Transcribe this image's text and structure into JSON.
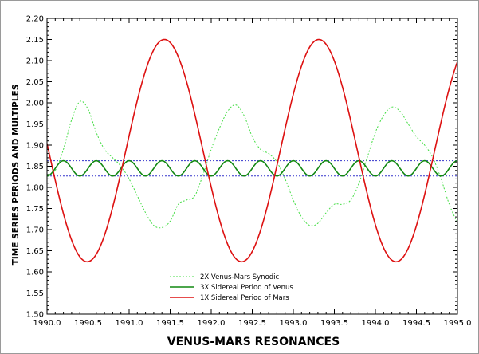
{
  "chart_data": {
    "type": "line",
    "title": "",
    "xlabel": "VENUS-MARS RESONANCES",
    "ylabel": "TIME SERIES PERIODS AND MULTIPLES",
    "xlim": [
      1990.0,
      1995.0
    ],
    "ylim": [
      1.5,
      2.2
    ],
    "x_ticks": [
      "1990.0",
      "1990.5",
      "1991.0",
      "1991.5",
      "1992.0",
      "1992.5",
      "1993.0",
      "1993.5",
      "1994.0",
      "1994.5",
      "1995.0"
    ],
    "y_ticks": [
      "1.50",
      "1.55",
      "1.60",
      "1.65",
      "1.70",
      "1.75",
      "1.80",
      "1.85",
      "1.90",
      "1.95",
      "2.00",
      "2.05",
      "2.10",
      "2.15",
      "2.20"
    ],
    "grid": false,
    "legend_position": "bottom-left",
    "reference_lines": [
      {
        "y": 1.863,
        "color": "#3333cc",
        "style": "dotted"
      },
      {
        "y": 1.827,
        "color": "#3333cc",
        "style": "dotted"
      }
    ],
    "series": [
      {
        "name": "2X Venus-Mars Synodic",
        "color": "#44dd44",
        "style": "dotted",
        "x": [
          1990.0,
          1990.1,
          1990.2,
          1990.3,
          1990.4,
          1990.5,
          1990.6,
          1990.7,
          1990.8,
          1990.9,
          1991.0,
          1991.1,
          1991.2,
          1991.3,
          1991.4,
          1991.5,
          1991.6,
          1991.7,
          1991.8,
          1991.9,
          1992.0,
          1992.1,
          1992.2,
          1992.3,
          1992.4,
          1992.5,
          1992.6,
          1992.7,
          1992.8,
          1992.9,
          1993.0,
          1993.1,
          1993.2,
          1993.3,
          1993.4,
          1993.5,
          1993.6,
          1993.7,
          1993.8,
          1993.9,
          1994.0,
          1994.1,
          1994.2,
          1994.3,
          1994.4,
          1994.5,
          1994.6,
          1994.7,
          1994.8,
          1994.9,
          1995.0
        ],
        "values": [
          1.83,
          1.84,
          1.89,
          1.96,
          2.003,
          1.985,
          1.93,
          1.89,
          1.87,
          1.85,
          1.82,
          1.78,
          1.74,
          1.71,
          1.705,
          1.72,
          1.76,
          1.77,
          1.78,
          1.83,
          1.89,
          1.94,
          1.98,
          1.995,
          1.97,
          1.92,
          1.89,
          1.88,
          1.86,
          1.82,
          1.77,
          1.73,
          1.71,
          1.715,
          1.74,
          1.76,
          1.76,
          1.77,
          1.81,
          1.87,
          1.93,
          1.97,
          1.99,
          1.98,
          1.95,
          1.92,
          1.9,
          1.87,
          1.82,
          1.76,
          1.715
        ]
      },
      {
        "name": "3X Sidereal Period of Venus",
        "color": "#118811",
        "style": "solid",
        "amplitude": 0.018,
        "mean": 1.845,
        "period_years": 0.4,
        "first_peak_x": 1990.2
      },
      {
        "name": "1X Sidereal Period of Mars",
        "color": "#dd1111",
        "style": "solid",
        "amplitude": 0.263,
        "mean": 1.887,
        "period_years": 1.881,
        "first_peak_x": 1991.43
      }
    ]
  }
}
